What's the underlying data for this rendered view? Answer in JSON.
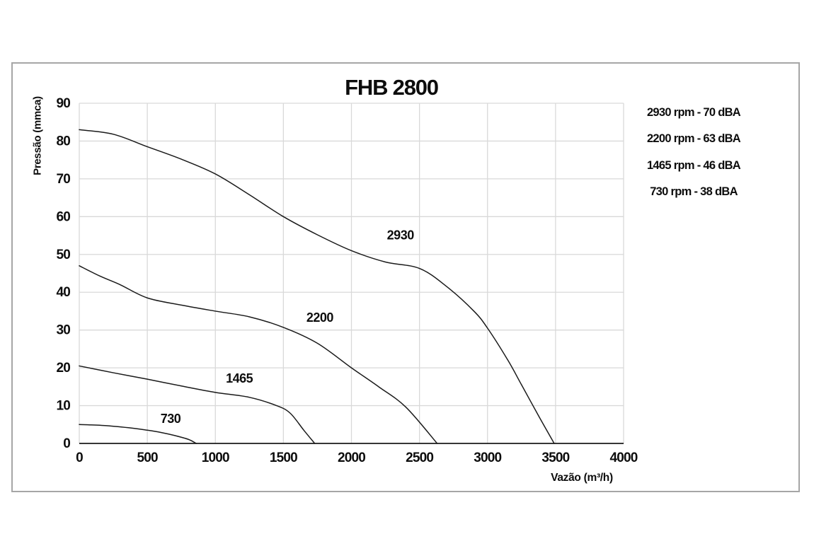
{
  "page": {
    "title": "FHB 2800"
  },
  "chart_data": {
    "type": "line",
    "title": "FHB 2800",
    "xlabel": "Vazão (m³/h)",
    "ylabel": "Pressão (mmca)",
    "xlim": [
      0,
      4000
    ],
    "ylim": [
      0,
      90
    ],
    "x_ticks": [
      0,
      500,
      1000,
      1500,
      2000,
      2500,
      3000,
      3500,
      4000
    ],
    "y_ticks": [
      0,
      10,
      20,
      30,
      40,
      50,
      60,
      70,
      80,
      90
    ],
    "grid": true,
    "legend_position": "right",
    "legend_entries": [
      "2930 rpm - 70 dBA",
      "2200 rpm - 63 dBA",
      "1465 rpm - 46 dBA",
      "730 rpm - 38 dBA"
    ],
    "colors": {
      "curve": "#1a1a1a",
      "grid": "#d9d9d9",
      "axis": "#1a1a1a",
      "frame": "#a6a6a6",
      "text": "#0d0d0d"
    },
    "series": [
      {
        "name": "2930",
        "label_at": {
          "x": 2360,
          "y": 54
        },
        "points": [
          [
            0,
            83
          ],
          [
            250,
            81.8
          ],
          [
            500,
            78.5
          ],
          [
            750,
            75.2
          ],
          [
            1000,
            71.3
          ],
          [
            1250,
            65.8
          ],
          [
            1500,
            60
          ],
          [
            1750,
            55.2
          ],
          [
            2000,
            51
          ],
          [
            2250,
            48
          ],
          [
            2500,
            46.3
          ],
          [
            2700,
            41.5
          ],
          [
            2900,
            35
          ],
          [
            3000,
            30.5
          ],
          [
            3150,
            22
          ],
          [
            3250,
            15.5
          ],
          [
            3380,
            7
          ],
          [
            3490,
            0
          ]
        ]
      },
      {
        "name": "2200",
        "label_at": {
          "x": 1768,
          "y": 32.2
        },
        "points": [
          [
            0,
            47
          ],
          [
            150,
            44.3
          ],
          [
            300,
            42
          ],
          [
            500,
            38.5
          ],
          [
            750,
            36.6
          ],
          [
            1000,
            35
          ],
          [
            1250,
            33.5
          ],
          [
            1500,
            30.7
          ],
          [
            1750,
            26.5
          ],
          [
            2000,
            20
          ],
          [
            2200,
            15
          ],
          [
            2400,
            9.6
          ],
          [
            2630,
            0
          ]
        ]
      },
      {
        "name": "1465",
        "label_at": {
          "x": 1176,
          "y": 16.1
        },
        "points": [
          [
            0,
            20.5
          ],
          [
            250,
            18.7
          ],
          [
            500,
            17
          ],
          [
            750,
            15.2
          ],
          [
            1000,
            13.5
          ],
          [
            1250,
            12.2
          ],
          [
            1450,
            10
          ],
          [
            1550,
            8
          ],
          [
            1650,
            3.5
          ],
          [
            1730,
            0
          ]
        ]
      },
      {
        "name": "730",
        "label_at": {
          "x": 671,
          "y": 5.4
        },
        "points": [
          [
            0,
            5
          ],
          [
            200,
            4.7
          ],
          [
            400,
            4
          ],
          [
            500,
            3.5
          ],
          [
            600,
            2.9
          ],
          [
            700,
            2.1
          ],
          [
            800,
            1.1
          ],
          [
            860,
            0
          ]
        ]
      }
    ]
  }
}
